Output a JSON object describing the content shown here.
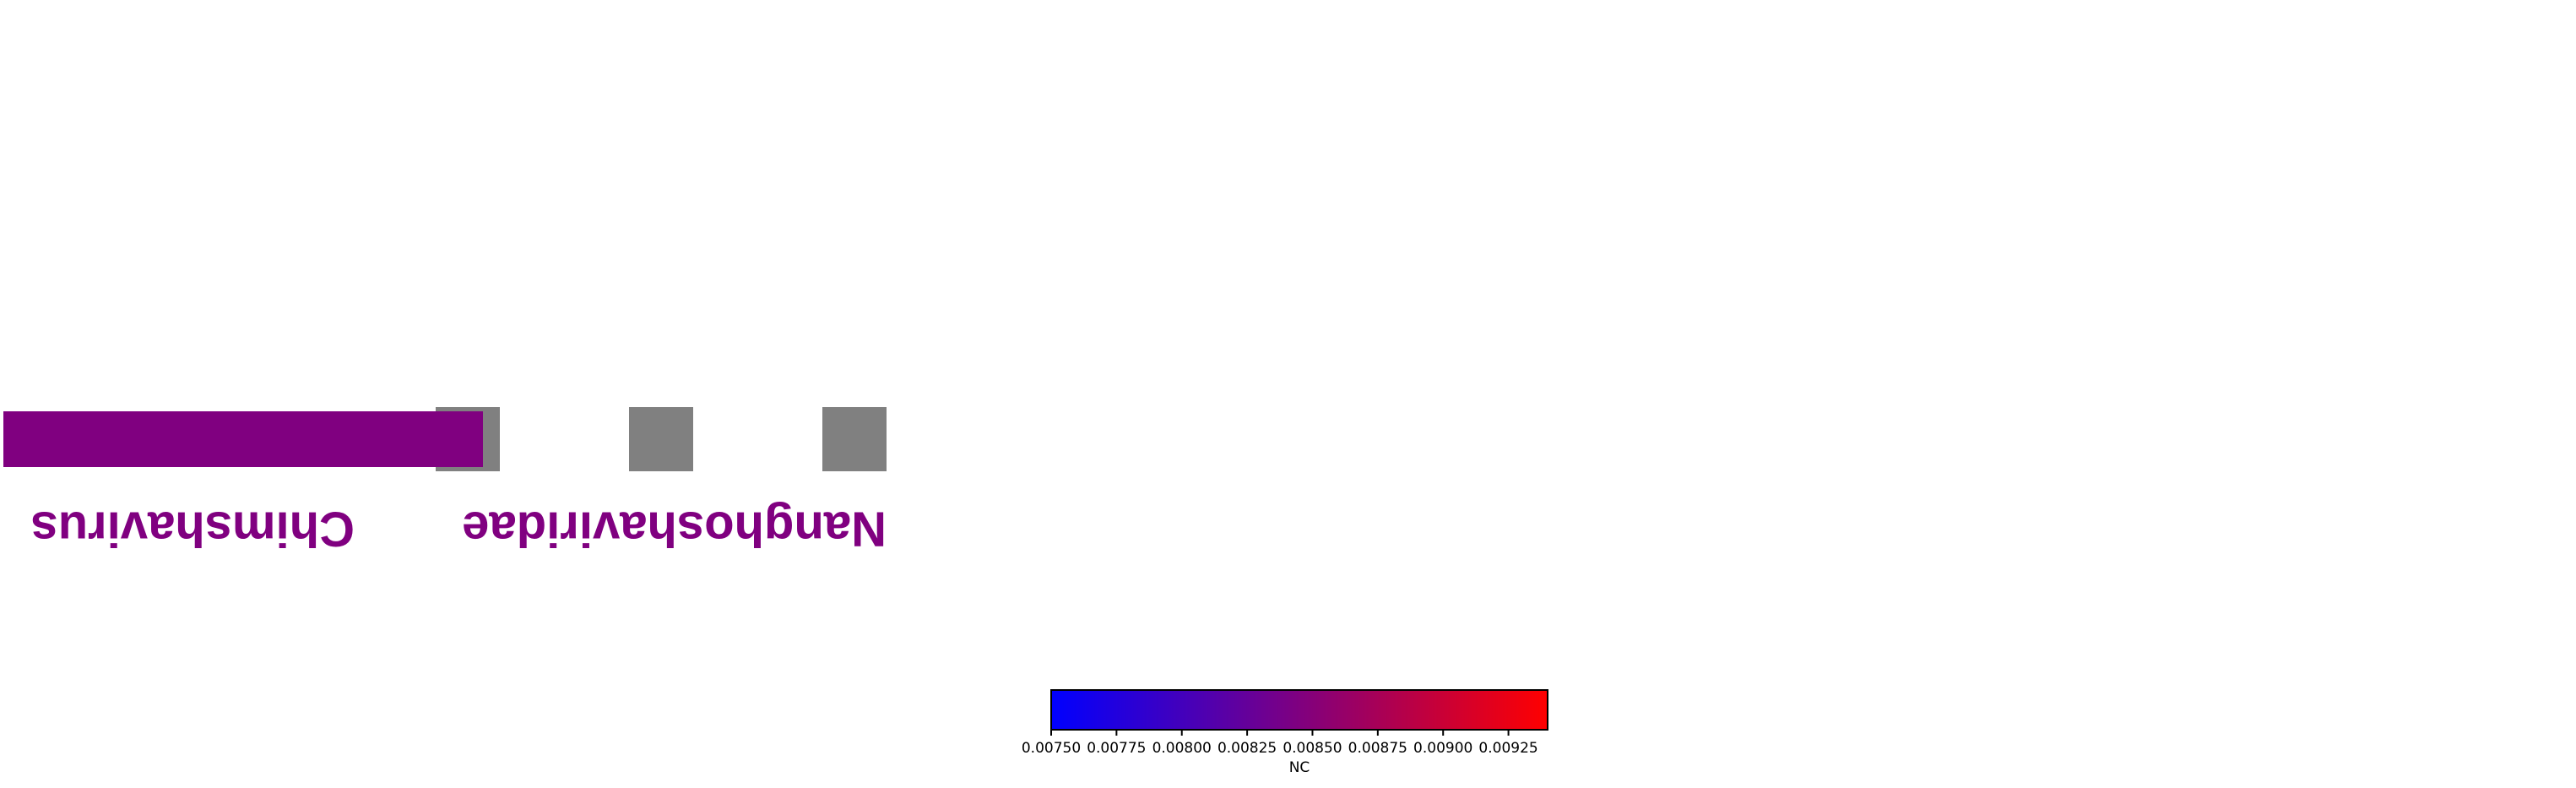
{
  "chart_data": {
    "type": "heatmap",
    "title": "",
    "labels": [
      "Nanghoshaviridae",
      "Chimshavirus"
    ],
    "bar": {
      "label": "Chimshavirus",
      "fill_fraction": 1.0
    },
    "cells": [
      {
        "label": "cell-1",
        "value": null
      },
      {
        "label": "cell-2",
        "value": null
      },
      {
        "label": "cell-3",
        "value": null
      }
    ],
    "colorbar": {
      "label": "NC",
      "range": [
        0.0075,
        0.0094
      ],
      "ticks": [
        "0.00750",
        "0.00775",
        "0.00800",
        "0.00825",
        "0.00850",
        "0.00875",
        "0.00900",
        "0.00925"
      ],
      "colors": [
        "#0000ff",
        "#ff0000"
      ]
    }
  },
  "colors": {
    "label_color": "#800080",
    "bar_color": "#800080",
    "null_cell_color": "#808080"
  }
}
